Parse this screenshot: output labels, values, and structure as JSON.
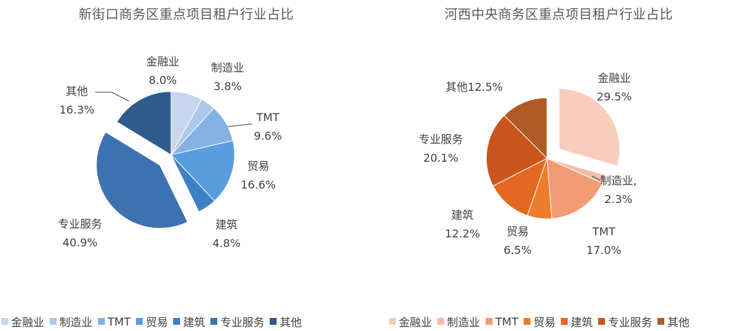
{
  "chart_data": [
    {
      "type": "pie",
      "title": "新街口商务区重点项目租户行业占比",
      "categories": [
        "金融业",
        "制造业",
        "TMT",
        "贸易",
        "建筑",
        "专业服务",
        "其他"
      ],
      "values": [
        8.0,
        3.8,
        9.6,
        16.6,
        4.8,
        40.9,
        16.3
      ],
      "value_labels": [
        "8.0%",
        "3.8%",
        "9.6%",
        "16.6%",
        "4.8%",
        "40.9%",
        "16.3%"
      ],
      "slice_labels": [
        "金融业",
        "制造业",
        "TMT",
        "贸易",
        "建筑",
        "专业服务",
        "其他"
      ],
      "colors": [
        "#c5d6ee",
        "#adc8ea",
        "#85b1e3",
        "#5a9ddf",
        "#3f7fc7",
        "#3d72b2",
        "#2f5c8d"
      ],
      "exploded": "专业服务",
      "legend": "bottom"
    },
    {
      "type": "pie",
      "title": "河西中央商务区重点项目租户行业占比",
      "categories": [
        "金融业",
        "制造业",
        "TMT",
        "贸易",
        "建筑",
        "专业服务",
        "其他"
      ],
      "values": [
        29.5,
        2.3,
        17.0,
        6.5,
        12.2,
        20.1,
        12.5
      ],
      "value_labels": [
        "29.5%",
        "2.3%",
        "17.0%",
        "6.5%",
        "12.2%",
        "20.1%",
        "12.5%"
      ],
      "slice_labels": [
        "金融业",
        "制造业,",
        "TMT",
        "贸易",
        "建筑",
        "专业服务",
        "其他"
      ],
      "colors": [
        "#f7cdbd",
        "#f5bca5",
        "#f29b76",
        "#ef7c2d",
        "#e2691f",
        "#c9561e",
        "#b05a24"
      ],
      "exploded": "金融业",
      "legend": "bottom"
    }
  ]
}
